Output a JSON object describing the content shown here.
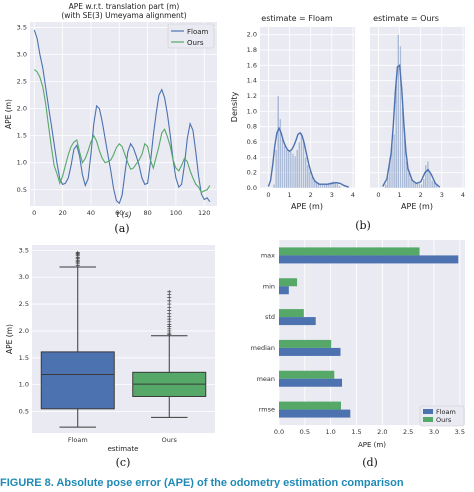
{
  "colors": {
    "blue": "#4c72b0",
    "green": "#55a868",
    "bg": "#eaeaf2",
    "grid": "#ffffff",
    "caption": "#1f8ab5"
  },
  "labels": {
    "a": "(a)",
    "b": "(b)",
    "c": "(c)",
    "d": "(d)"
  },
  "caption": "FIGURE 8.  Absolute pose error (APE) of the odometry estimation comparison",
  "chart_data": [
    {
      "id": "a",
      "type": "line",
      "title": "APE w.r.t. translation part (m)",
      "subtitle": "(with SE(3) Umeyama alignment)",
      "xlabel": "t (s)",
      "ylabel": "APE (m)",
      "xlim": [
        -3,
        129
      ],
      "ylim": [
        0.2,
        3.6
      ],
      "xticks": [
        0,
        20,
        40,
        60,
        80,
        100,
        120
      ],
      "yticks": [
        0.5,
        1.0,
        1.5,
        2.0,
        2.5,
        3.0,
        3.5
      ],
      "ytick_labels": [
        "0.5",
        "1.0",
        "1.5",
        "2.0",
        "2.5",
        "3.0",
        "3.5"
      ],
      "grid": true,
      "legend": "top-right",
      "series": [
        {
          "name": "Floam",
          "color": "#4c72b0",
          "x": [
            0,
            2,
            4,
            6,
            8,
            10,
            12,
            14,
            16,
            18,
            20,
            22,
            24,
            26,
            28,
            30,
            32,
            34,
            36,
            38,
            40,
            42,
            44,
            46,
            48,
            50,
            52,
            54,
            56,
            58,
            60,
            62,
            64,
            66,
            68,
            70,
            72,
            74,
            76,
            78,
            80,
            82,
            84,
            86,
            88,
            90,
            92,
            94,
            96,
            98,
            100,
            102,
            104,
            106,
            108,
            110,
            112,
            114,
            116,
            118,
            120,
            122,
            124
          ],
          "y": [
            3.45,
            3.3,
            3.0,
            2.75,
            2.4,
            2.05,
            1.7,
            1.35,
            1.0,
            0.7,
            0.6,
            0.62,
            0.72,
            0.95,
            1.25,
            1.32,
            1.12,
            0.78,
            0.58,
            0.7,
            1.15,
            1.72,
            2.05,
            2.0,
            1.75,
            1.45,
            1.15,
            0.85,
            0.52,
            0.3,
            0.25,
            0.4,
            0.8,
            1.2,
            1.35,
            1.27,
            1.12,
            0.95,
            0.72,
            0.6,
            0.62,
            1.0,
            1.5,
            1.9,
            2.25,
            2.35,
            2.2,
            1.9,
            1.5,
            1.05,
            0.72,
            0.55,
            0.6,
            0.95,
            1.45,
            1.72,
            1.6,
            1.2,
            0.75,
            0.42,
            0.32,
            0.35,
            0.28
          ]
        },
        {
          "name": "Ours",
          "color": "#55a868",
          "x": [
            0,
            2,
            4,
            6,
            8,
            10,
            12,
            14,
            16,
            18,
            20,
            22,
            24,
            26,
            28,
            30,
            32,
            34,
            36,
            38,
            40,
            42,
            44,
            46,
            48,
            50,
            52,
            54,
            56,
            58,
            60,
            62,
            64,
            66,
            68,
            70,
            72,
            74,
            76,
            78,
            80,
            82,
            84,
            86,
            88,
            90,
            92,
            94,
            96,
            98,
            100,
            102,
            104,
            106,
            108,
            110,
            112,
            114,
            116,
            118,
            120,
            122,
            124
          ],
          "y": [
            2.72,
            2.68,
            2.58,
            2.4,
            2.1,
            1.7,
            1.3,
            0.95,
            0.8,
            0.62,
            0.75,
            0.95,
            1.15,
            1.3,
            1.38,
            1.42,
            1.2,
            1.0,
            1.08,
            1.22,
            1.38,
            1.5,
            1.4,
            1.22,
            1.08,
            1.0,
            1.02,
            1.05,
            1.15,
            1.28,
            1.35,
            1.3,
            1.15,
            1.0,
            0.88,
            0.9,
            0.98,
            1.05,
            1.15,
            1.35,
            1.3,
            1.05,
            0.9,
            1.1,
            1.3,
            1.55,
            1.62,
            1.48,
            1.3,
            1.05,
            0.9,
            0.85,
            0.95,
            1.08,
            1.02,
            0.85,
            0.72,
            0.6,
            0.55,
            0.45,
            0.48,
            0.5,
            0.58
          ]
        }
      ]
    },
    {
      "id": "b-left",
      "type": "bar",
      "title": "estimate = Floam",
      "xlabel": "APE (m)",
      "ylabel": "Density",
      "xlim": [
        -0.4,
        4.1
      ],
      "ylim": [
        0,
        2.1
      ],
      "xticks": [
        0,
        1,
        2,
        3,
        4
      ],
      "yticks": [
        0.0,
        0.2,
        0.4,
        0.6,
        0.8,
        1.0,
        1.2,
        1.4,
        1.6,
        1.8,
        2.0
      ],
      "ytick_labels": [
        "0.0",
        "0.2",
        "0.4",
        "0.6",
        "0.8",
        "1.0",
        "1.2",
        "1.4",
        "1.6",
        "1.8",
        "2.0"
      ],
      "bin_starts": [
        0.22,
        0.32,
        0.42,
        0.52,
        0.62,
        0.72,
        0.82,
        0.92,
        1.02,
        1.12,
        1.22,
        1.32,
        1.42,
        1.52,
        1.62,
        1.72,
        1.82,
        1.92,
        2.02,
        2.12,
        2.22,
        2.32,
        2.42,
        2.52,
        2.62,
        2.72,
        2.82,
        2.92,
        3.02,
        3.12,
        3.22,
        3.32
      ],
      "bin_width": 0.1,
      "values": [
        0.05,
        0.5,
        1.2,
        0.9,
        0.65,
        0.55,
        0.5,
        0.5,
        0.48,
        0.45,
        0.42,
        0.5,
        0.6,
        0.72,
        0.62,
        0.4,
        0.3,
        0.22,
        0.15,
        0.1,
        0.08,
        0.07,
        0.06,
        0.06,
        0.06,
        0.06,
        0.07,
        0.08,
        0.09,
        0.08,
        0.07,
        0.03
      ],
      "kde_x": [
        0.0,
        0.1,
        0.2,
        0.3,
        0.4,
        0.5,
        0.6,
        0.7,
        0.8,
        0.9,
        1.0,
        1.1,
        1.2,
        1.3,
        1.4,
        1.5,
        1.6,
        1.7,
        1.8,
        1.9,
        2.0,
        2.1,
        2.2,
        2.4,
        2.6,
        2.8,
        3.0,
        3.2,
        3.4,
        3.6,
        3.8
      ],
      "kde_y": [
        0.02,
        0.1,
        0.3,
        0.55,
        0.72,
        0.78,
        0.72,
        0.62,
        0.55,
        0.5,
        0.48,
        0.5,
        0.55,
        0.62,
        0.7,
        0.72,
        0.68,
        0.58,
        0.45,
        0.32,
        0.22,
        0.14,
        0.09,
        0.05,
        0.05,
        0.05,
        0.06,
        0.07,
        0.06,
        0.03,
        0.01
      ]
    },
    {
      "id": "b-right",
      "type": "bar",
      "title": "estimate = Ours",
      "xlabel": "APE (m)",
      "ylabel": "",
      "xlim": [
        -0.4,
        4.1
      ],
      "ylim": [
        0,
        2.1
      ],
      "xticks": [
        0,
        1,
        2,
        3,
        4
      ],
      "bin_starts": [
        0.3,
        0.4,
        0.5,
        0.6,
        0.7,
        0.8,
        0.9,
        1.0,
        1.1,
        1.2,
        1.3,
        1.4,
        1.5,
        1.6,
        1.7,
        1.8,
        1.9,
        2.0,
        2.1,
        2.2,
        2.3,
        2.4,
        2.5,
        2.6,
        2.7
      ],
      "bin_width": 0.1,
      "values": [
        0.05,
        0.15,
        0.4,
        0.55,
        0.7,
        1.35,
        2.0,
        1.85,
        1.05,
        0.65,
        0.35,
        0.2,
        0.12,
        0.1,
        0.08,
        0.06,
        0.06,
        0.05,
        0.12,
        0.3,
        0.35,
        0.2,
        0.1,
        0.08,
        0.05
      ],
      "kde_x": [
        0.2,
        0.4,
        0.6,
        0.7,
        0.8,
        0.9,
        1.0,
        1.1,
        1.2,
        1.3,
        1.4,
        1.6,
        1.8,
        2.0,
        2.2,
        2.35,
        2.5,
        2.7,
        2.9
      ],
      "kde_y": [
        0.02,
        0.12,
        0.45,
        0.8,
        1.25,
        1.58,
        1.6,
        1.3,
        0.85,
        0.48,
        0.25,
        0.1,
        0.06,
        0.08,
        0.2,
        0.24,
        0.18,
        0.06,
        0.01
      ]
    },
    {
      "id": "c",
      "type": "box",
      "xlabel": "estimate",
      "ylabel": "APE (m)",
      "ylim": [
        0.1,
        3.6
      ],
      "yticks": [
        0.5,
        1.0,
        1.5,
        2.0,
        2.5,
        3.0,
        3.5
      ],
      "ytick_labels": [
        "0.5",
        "1.0",
        "1.5",
        "2.0",
        "2.5",
        "3.0",
        "3.5"
      ],
      "categories": [
        "Floam",
        "Ours"
      ],
      "boxes": [
        {
          "name": "Floam",
          "color": "#4c72b0",
          "min": 0.21,
          "q1": 0.55,
          "median": 1.19,
          "q3": 1.61,
          "whisker_high": 3.19,
          "outliers": [
            3.22,
            3.25,
            3.28,
            3.3,
            3.32,
            3.35,
            3.37,
            3.4,
            3.42,
            3.44,
            3.46
          ]
        },
        {
          "name": "Ours",
          "color": "#55a868",
          "min": 0.39,
          "q1": 0.78,
          "median": 1.01,
          "q3": 1.23,
          "whisker_high": 1.91,
          "outliers": [
            1.93,
            1.96,
            2.0,
            2.04,
            2.08,
            2.12,
            2.17,
            2.22,
            2.27,
            2.32,
            2.38,
            2.44,
            2.5,
            2.56,
            2.62,
            2.68,
            2.73
          ]
        }
      ]
    },
    {
      "id": "d",
      "type": "bar",
      "orientation": "horizontal",
      "xlabel": "APE (m)",
      "ylabel": "",
      "xlim": [
        0,
        3.6
      ],
      "xticks": [
        0.0,
        0.5,
        1.0,
        1.5,
        2.0,
        2.5,
        3.0,
        3.5
      ],
      "xtick_labels": [
        "0.0",
        "0.5",
        "1.0",
        "1.5",
        "2.0",
        "2.5",
        "3.0",
        "3.5"
      ],
      "categories": [
        "max",
        "min",
        "std",
        "median",
        "mean",
        "rmse"
      ],
      "legend": "bottom-right",
      "series": [
        {
          "name": "Ours",
          "color": "#55a868",
          "values": [
            2.72,
            0.35,
            0.48,
            1.01,
            1.07,
            1.2
          ]
        },
        {
          "name": "Floam",
          "color": "#4c72b0",
          "values": [
            3.47,
            0.19,
            0.71,
            1.19,
            1.22,
            1.38
          ]
        }
      ]
    }
  ]
}
